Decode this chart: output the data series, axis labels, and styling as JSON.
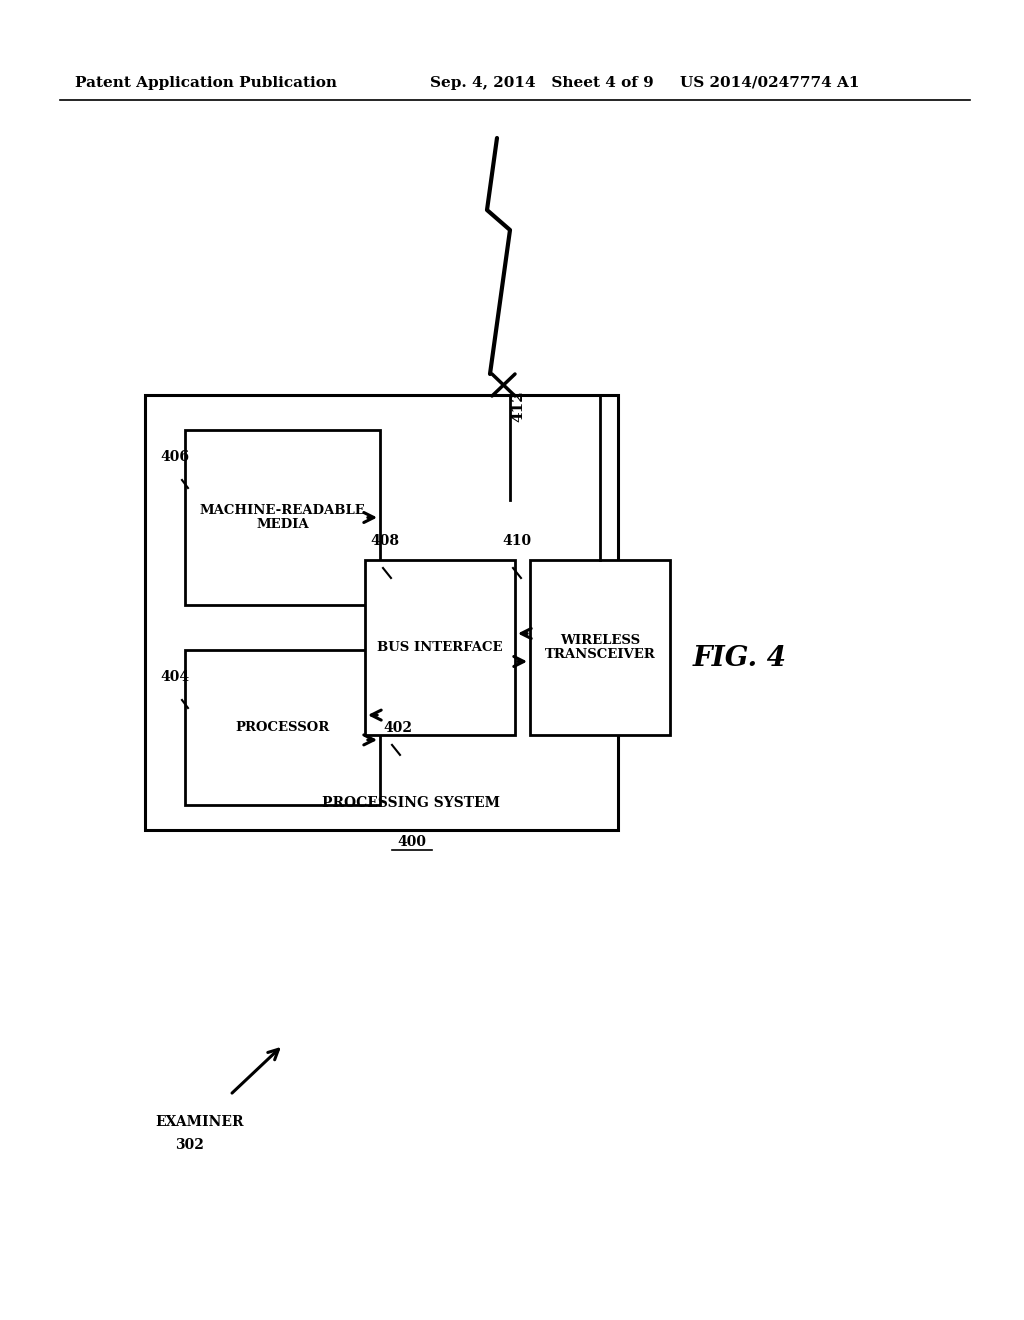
{
  "bg_color": "#ffffff",
  "header_left": "Patent Application Publication",
  "header_mid": "Sep. 4, 2014   Sheet 4 of 9",
  "header_right": "US 2014/0247774 A1",
  "label_406": "406",
  "label_404": "404",
  "label_408": "408",
  "label_410": "410",
  "label_412": "412",
  "label_402": "402",
  "label_400": "400",
  "label_processing_system": "PROCESSING SYSTEM",
  "label_mrm": "MACHINE-READABLE\nMEDIA",
  "label_processor": "PROCESSOR",
  "label_bus_interface": "BUS INTERFACE",
  "label_wireless_transceiver": "WIRELESS\nTRANSCEIVER",
  "fig4_label": "FIG. 4",
  "examiner_text": "EXAMINER",
  "examiner_num": "302"
}
